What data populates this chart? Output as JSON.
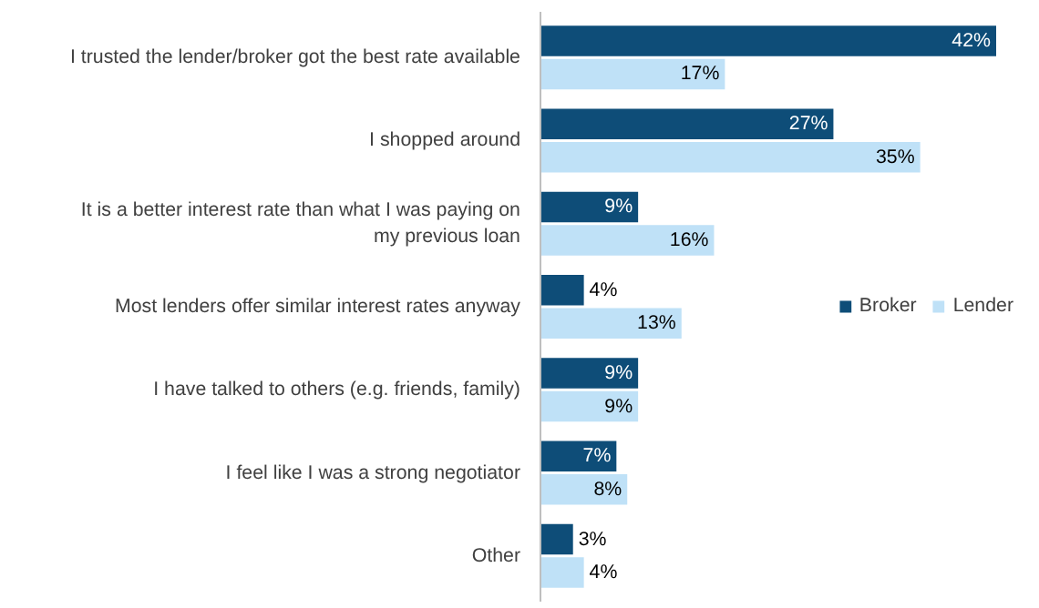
{
  "chart_data": {
    "type": "bar",
    "orientation": "horizontal",
    "categories": [
      "I trusted the lender/broker got the best rate available",
      "I shopped around",
      "It is a better interest rate than what I was paying on my previous loan",
      "Most lenders offer similar interest rates anyway",
      "I have talked to others (e.g. friends, family)",
      "I feel like I was a strong negotiator",
      "Other"
    ],
    "series": [
      {
        "name": "Broker",
        "color": "#0e4d78",
        "values": [
          42,
          27,
          9,
          4,
          9,
          7,
          3
        ],
        "value_labels": [
          "42%",
          "27%",
          "9%",
          "4%",
          "9%",
          "7%",
          "3%"
        ]
      },
      {
        "name": "Lender",
        "color": "#bfe1f7",
        "values": [
          17,
          35,
          16,
          13,
          9,
          8,
          4
        ],
        "value_labels": [
          "17%",
          "35%",
          "16%",
          "13%",
          "9%",
          "8%",
          "4%"
        ]
      }
    ],
    "legend": "center right",
    "tick_labels": "y",
    "grid": false
  }
}
